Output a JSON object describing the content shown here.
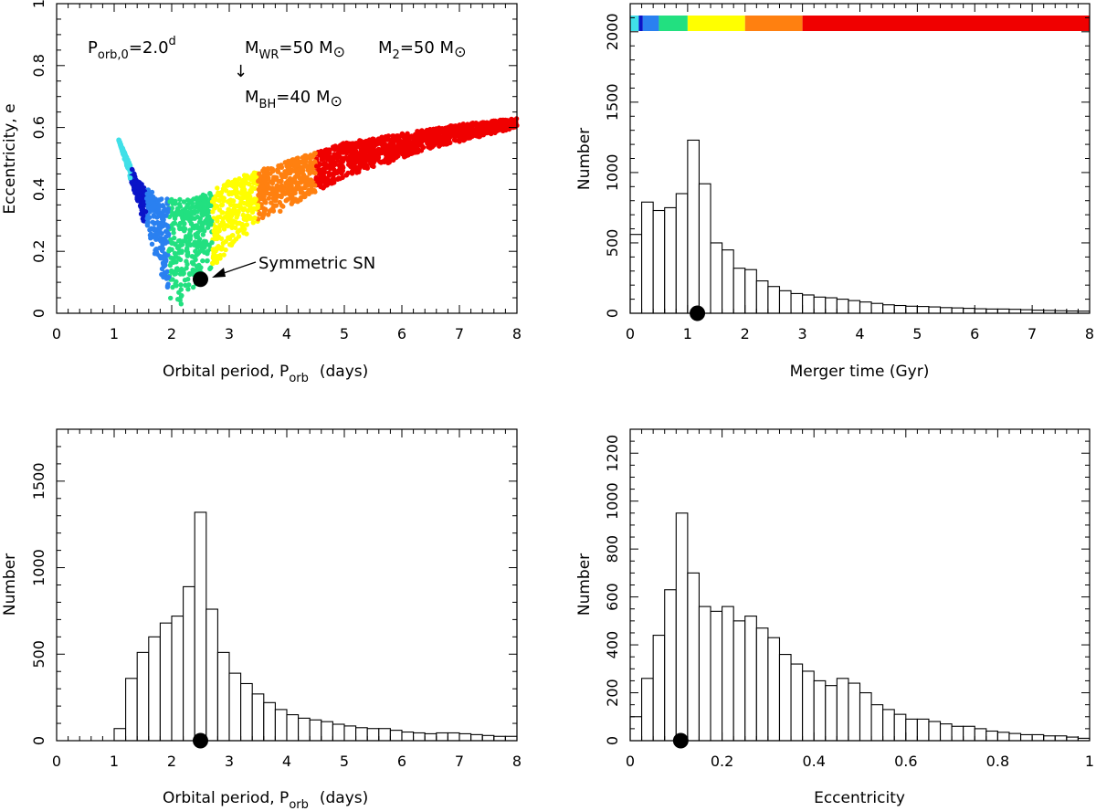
{
  "colors": {
    "cyan": "#40e0e8",
    "navy": "#0a14c8",
    "azure": "#2a80f0",
    "green": "#22e080",
    "yellow": "#ffff00",
    "orange": "#ff8010",
    "red": "#f00000",
    "marker": "#000000"
  },
  "chart_data": [
    {
      "id": "panel-a",
      "type": "scatter",
      "xlabel": "Orbital period, P",
      "xlabel_sub": "orb",
      "xlabel_unit": "(days)",
      "ylabel": "Eccentricity, e",
      "xlim": [
        0,
        8
      ],
      "ylim": [
        0,
        1
      ],
      "xticks": [
        0,
        1,
        2,
        3,
        4,
        5,
        6,
        7,
        8
      ],
      "yticks": [
        0,
        0.2,
        0.4,
        0.6,
        0.8,
        1
      ],
      "ytick_labels": [
        "0",
        "0.2",
        "0.4",
        "0.6",
        "0.8",
        "1"
      ],
      "envelope": {
        "lower_left": [
          [
            1.08,
            0.56
          ],
          [
            1.4,
            0.36
          ],
          [
            1.75,
            0.16
          ],
          [
            2.05,
            0.0
          ]
        ],
        "lower_right": [
          [
            2.05,
            0.0
          ],
          [
            2.5,
            0.11
          ],
          [
            3.5,
            0.29
          ],
          [
            5.0,
            0.44
          ],
          [
            6.5,
            0.53
          ],
          [
            8.0,
            0.6
          ]
        ],
        "upper": [
          [
            1.08,
            0.56
          ],
          [
            1.4,
            0.43
          ],
          [
            1.8,
            0.37
          ],
          [
            2.4,
            0.37
          ],
          [
            3.0,
            0.43
          ],
          [
            4.0,
            0.49
          ],
          [
            5.0,
            0.55
          ],
          [
            6.0,
            0.58
          ],
          [
            7.0,
            0.61
          ],
          [
            8.0,
            0.63
          ]
        ]
      },
      "color_bands": [
        {
          "color": "cyan",
          "p_min": 1.05,
          "p_max": 1.3
        },
        {
          "color": "navy",
          "p_min": 1.3,
          "p_max": 1.55
        },
        {
          "color": "azure",
          "p_min": 1.55,
          "p_max": 1.95
        },
        {
          "color": "green",
          "p_min": 1.95,
          "p_max": 2.7
        },
        {
          "color": "yellow",
          "p_min": 2.7,
          "p_max": 3.5
        },
        {
          "color": "orange",
          "p_min": 3.5,
          "p_max": 4.5
        },
        {
          "color": "red",
          "p_min": 4.5,
          "p_max": 8.0
        }
      ],
      "marker": {
        "x": 2.5,
        "y": 0.11
      },
      "annotations": {
        "porb0_main": "P",
        "porb0_sub": "orb,0",
        "porb0_val": "=2.0",
        "porb0_sup": "d",
        "mwr_main": "M",
        "mwr_sub": "WR",
        "mwr_val": "=50 M",
        "m2_main": "M",
        "m2_sub": "2",
        "m2_val": "=50 M",
        "arrow": "↓",
        "mbh_main": "M",
        "mbh_sub": "BH",
        "mbh_val": "=40 M",
        "sun": "⊙",
        "sn_label": "Symmetric SN"
      }
    },
    {
      "id": "panel-b",
      "type": "bar",
      "xlabel": "Merger time  (Gyr)",
      "ylabel": "Number",
      "xlim": [
        0,
        8
      ],
      "ylim": [
        0,
        2200
      ],
      "bin_width": 0.2,
      "bin_start": 0,
      "xticks": [
        0,
        1,
        2,
        3,
        4,
        5,
        6,
        7,
        8
      ],
      "yticks": [
        0,
        500,
        1000,
        1500,
        2000
      ],
      "values": [
        560,
        790,
        730,
        750,
        850,
        1230,
        920,
        500,
        450,
        320,
        310,
        230,
        190,
        160,
        140,
        130,
        115,
        110,
        100,
        90,
        80,
        70,
        60,
        55,
        50,
        48,
        45,
        40,
        38,
        35,
        32,
        30,
        30,
        28,
        25,
        22,
        20,
        18,
        16,
        15
      ],
      "marker": {
        "x": 1.17,
        "y": 0
      },
      "color_strip": [
        {
          "color": "cyan",
          "from": 0.0,
          "to": 0.15
        },
        {
          "color": "navy",
          "from": 0.15,
          "to": 0.22
        },
        {
          "color": "azure",
          "from": 0.22,
          "to": 0.5
        },
        {
          "color": "green",
          "from": 0.5,
          "to": 1.0
        },
        {
          "color": "yellow",
          "from": 1.0,
          "to": 2.0
        },
        {
          "color": "orange",
          "from": 2.0,
          "to": 3.0
        },
        {
          "color": "red",
          "from": 3.0,
          "to": 8.0
        }
      ]
    },
    {
      "id": "panel-c",
      "type": "bar",
      "xlabel": "Orbital period, P",
      "xlabel_sub": "orb",
      "xlabel_unit": "(days)",
      "ylabel": "Number",
      "xlim": [
        0,
        8
      ],
      "ylim": [
        0,
        1800
      ],
      "bin_width": 0.2,
      "bin_start": 0,
      "xticks": [
        0,
        1,
        2,
        3,
        4,
        5,
        6,
        7,
        8
      ],
      "yticks": [
        0,
        500,
        1000,
        1500
      ],
      "values": [
        0,
        0,
        0,
        0,
        0,
        70,
        360,
        510,
        600,
        680,
        720,
        890,
        1320,
        760,
        510,
        390,
        330,
        270,
        220,
        180,
        150,
        130,
        120,
        110,
        95,
        85,
        75,
        70,
        70,
        60,
        50,
        45,
        40,
        45,
        45,
        40,
        35,
        30,
        25,
        25
      ],
      "marker": {
        "x": 2.5,
        "y": 0
      }
    },
    {
      "id": "panel-d",
      "type": "bar",
      "xlabel": "Eccentricity",
      "ylabel": "Number",
      "xlim": [
        0,
        1
      ],
      "ylim": [
        0,
        1300
      ],
      "bin_width": 0.025,
      "bin_start": 0,
      "xticks": [
        0,
        0.2,
        0.4,
        0.6,
        0.8,
        1
      ],
      "xtick_labels": [
        "0",
        "0.2",
        "0.4",
        "0.6",
        "0.8",
        "1"
      ],
      "yticks": [
        0,
        200,
        400,
        600,
        800,
        1000,
        1200
      ],
      "values": [
        100,
        260,
        440,
        630,
        950,
        700,
        560,
        540,
        560,
        500,
        520,
        470,
        430,
        360,
        320,
        290,
        250,
        230,
        260,
        240,
        200,
        150,
        130,
        110,
        90,
        90,
        80,
        70,
        60,
        60,
        50,
        40,
        35,
        30,
        25,
        25,
        20,
        20,
        15,
        10
      ],
      "marker": {
        "x": 0.11,
        "y": 0
      }
    }
  ]
}
